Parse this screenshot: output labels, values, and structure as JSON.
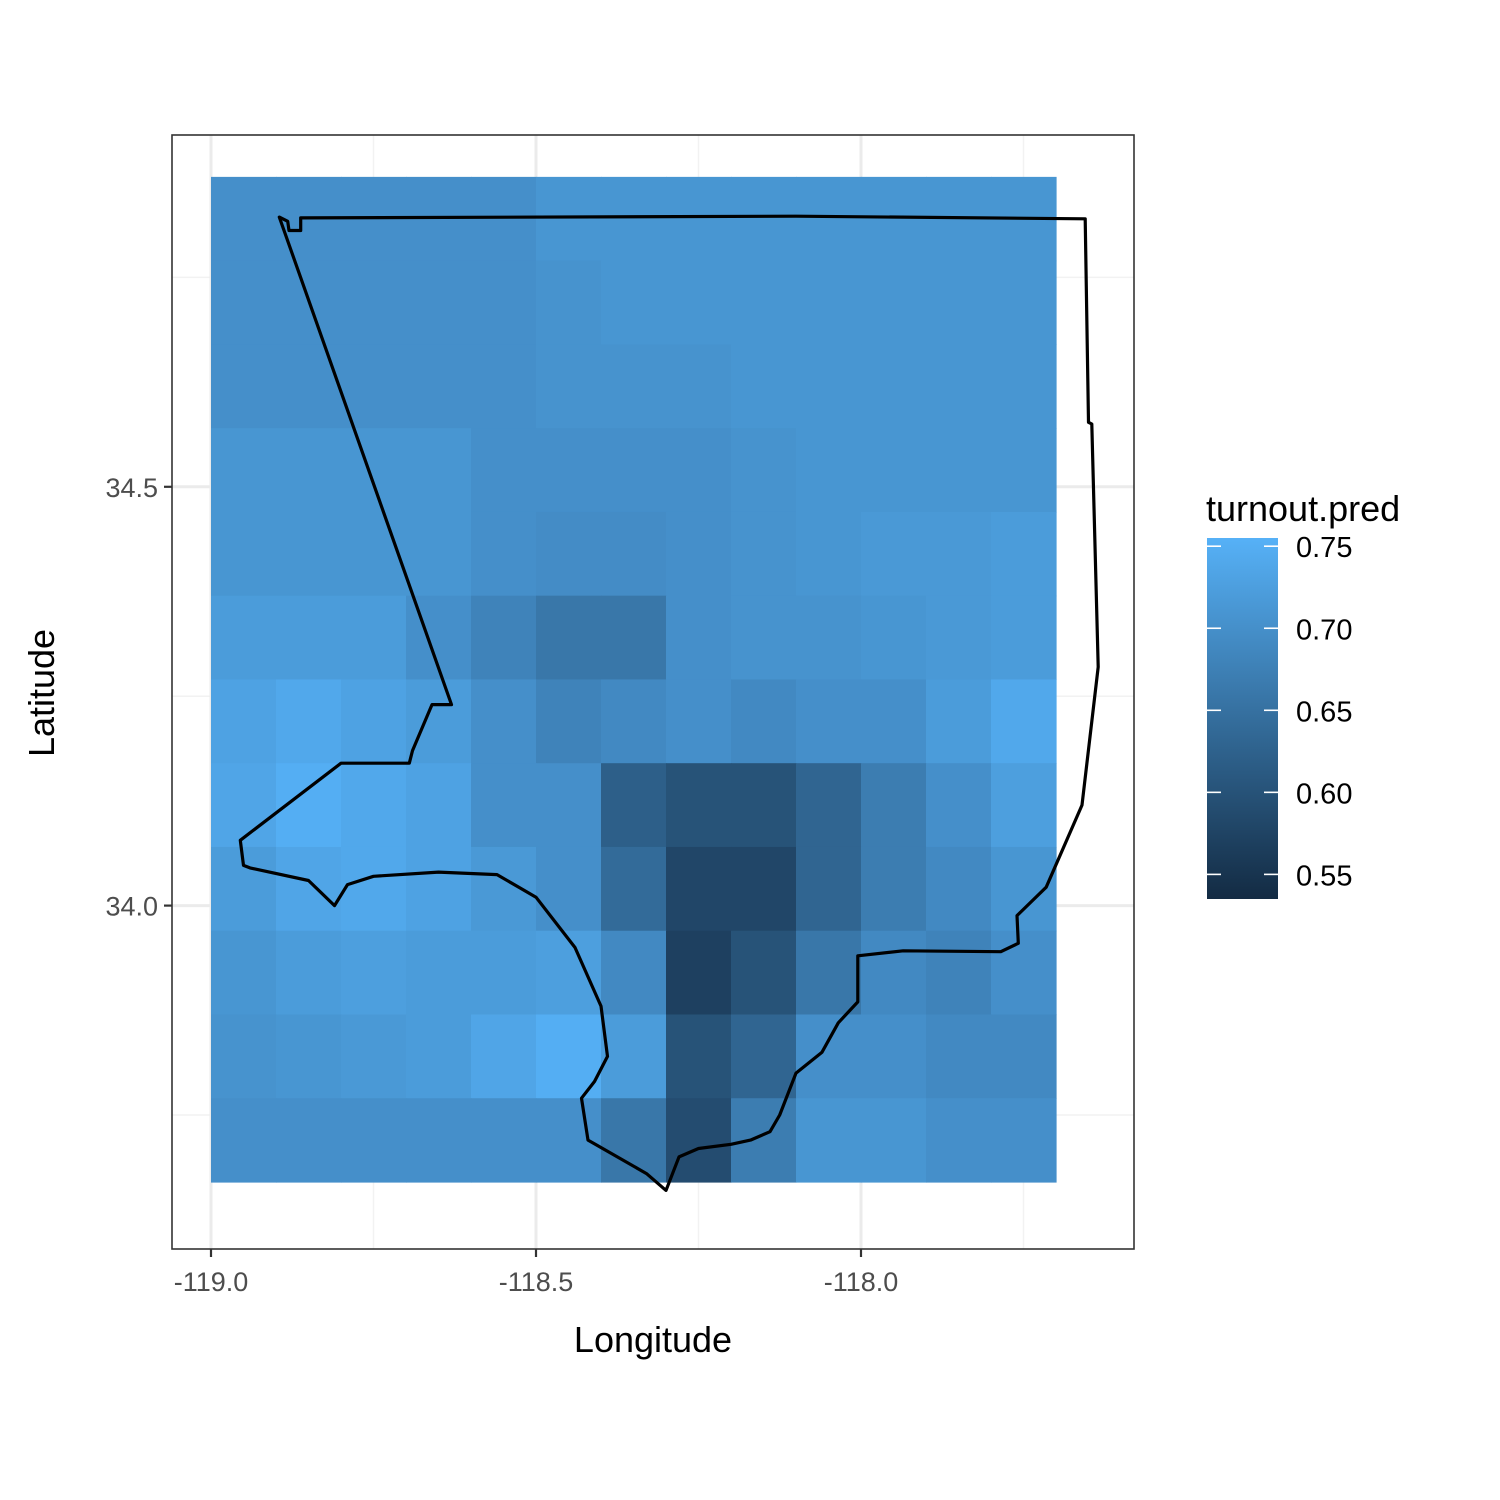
{
  "chart_data": {
    "type": "heatmap",
    "title": "",
    "xlabel": "Longitude",
    "ylabel": "Latitude",
    "xlim": [
      -119.06,
      -117.58
    ],
    "ylim": [
      33.59,
      34.92
    ],
    "grid": true,
    "theme": "bw",
    "x_ticks": [
      {
        "value": -119.0,
        "label": "-119.0"
      },
      {
        "value": -118.5,
        "label": "-118.5"
      },
      {
        "value": -118.0,
        "label": "-118.0"
      }
    ],
    "y_ticks": [
      {
        "value": 34.5,
        "label": "34.5"
      },
      {
        "value": 34.0,
        "label": "34.0"
      }
    ],
    "x_minor_grid": [
      -118.75,
      -118.25,
      -117.75
    ],
    "y_minor_grid": [
      34.75,
      34.25,
      33.75
    ],
    "tile_grid": {
      "x_start": -119.0,
      "x_step": 0.1,
      "n_cols": 13,
      "y_top": 34.87,
      "y_step": 0.1,
      "n_rows": 12,
      "note_rows_top_to_bottom": true
    },
    "z_values": [
      [
        0.7,
        0.7,
        0.7,
        0.7,
        0.7,
        0.71,
        0.71,
        0.71,
        0.71,
        0.71,
        0.71,
        0.71,
        0.71
      ],
      [
        0.7,
        0.7,
        0.7,
        0.7,
        0.7,
        0.705,
        0.71,
        0.71,
        0.71,
        0.71,
        0.71,
        0.71,
        0.71
      ],
      [
        0.7,
        0.7,
        0.7,
        0.7,
        0.7,
        0.705,
        0.705,
        0.705,
        0.71,
        0.71,
        0.71,
        0.71,
        0.71
      ],
      [
        0.71,
        0.71,
        0.71,
        0.71,
        0.7,
        0.7,
        0.7,
        0.7,
        0.705,
        0.71,
        0.71,
        0.71,
        0.71
      ],
      [
        0.71,
        0.71,
        0.71,
        0.71,
        0.7,
        0.695,
        0.695,
        0.7,
        0.705,
        0.71,
        0.715,
        0.715,
        0.72
      ],
      [
        0.72,
        0.72,
        0.72,
        0.7,
        0.68,
        0.66,
        0.66,
        0.7,
        0.705,
        0.705,
        0.71,
        0.715,
        0.72
      ],
      [
        0.73,
        0.74,
        0.73,
        0.72,
        0.7,
        0.68,
        0.69,
        0.7,
        0.69,
        0.7,
        0.7,
        0.72,
        0.74
      ],
      [
        0.735,
        0.75,
        0.74,
        0.73,
        0.7,
        0.7,
        0.62,
        0.6,
        0.6,
        0.63,
        0.67,
        0.7,
        0.725
      ],
      [
        0.72,
        0.735,
        0.74,
        0.73,
        0.715,
        0.7,
        0.64,
        0.58,
        0.58,
        0.63,
        0.67,
        0.69,
        0.71
      ],
      [
        0.71,
        0.72,
        0.725,
        0.72,
        0.72,
        0.725,
        0.69,
        0.57,
        0.6,
        0.66,
        0.69,
        0.68,
        0.7
      ],
      [
        0.705,
        0.71,
        0.715,
        0.72,
        0.735,
        0.75,
        0.72,
        0.6,
        0.63,
        0.7,
        0.7,
        0.69,
        0.69
      ],
      [
        0.7,
        0.7,
        0.7,
        0.7,
        0.7,
        0.7,
        0.66,
        0.59,
        0.67,
        0.71,
        0.71,
        0.7,
        0.7
      ]
    ],
    "legend": {
      "title": "turnout.pred",
      "position": "right",
      "range": [
        0.535,
        0.755
      ],
      "low_color": "#132B43",
      "high_color": "#56B1F7",
      "breaks": [
        {
          "value": 0.75,
          "label": "0.75"
        },
        {
          "value": 0.7,
          "label": "0.70"
        },
        {
          "value": 0.65,
          "label": "0.65"
        },
        {
          "value": 0.6,
          "label": "0.60"
        },
        {
          "value": 0.55,
          "label": "0.55"
        }
      ]
    },
    "county_outline": [
      [
        -118.895,
        34.822
      ],
      [
        -118.882,
        34.817
      ],
      [
        -118.88,
        34.806
      ],
      [
        -118.862,
        34.806
      ],
      [
        -118.862,
        34.821
      ],
      [
        -118.1,
        34.823
      ],
      [
        -117.655,
        34.82
      ],
      [
        -117.65,
        34.577
      ],
      [
        -117.645,
        34.575
      ],
      [
        -117.635,
        34.285
      ],
      [
        -117.66,
        34.12
      ],
      [
        -117.715,
        34.022
      ],
      [
        -117.76,
        33.988
      ],
      [
        -117.758,
        33.955
      ],
      [
        -117.785,
        33.945
      ],
      [
        -117.935,
        33.946
      ],
      [
        -118.005,
        33.94
      ],
      [
        -118.005,
        33.885
      ],
      [
        -118.035,
        33.86
      ],
      [
        -118.06,
        33.825
      ],
      [
        -118.1,
        33.8
      ],
      [
        -118.125,
        33.75
      ],
      [
        -118.14,
        33.73
      ],
      [
        -118.17,
        33.72
      ],
      [
        -118.2,
        33.715
      ],
      [
        -118.25,
        33.71
      ],
      [
        -118.28,
        33.7
      ],
      [
        -118.3,
        33.66
      ],
      [
        -118.33,
        33.68
      ],
      [
        -118.42,
        33.72
      ],
      [
        -118.43,
        33.77
      ],
      [
        -118.41,
        33.79
      ],
      [
        -118.39,
        33.82
      ],
      [
        -118.4,
        33.88
      ],
      [
        -118.44,
        33.95
      ],
      [
        -118.5,
        34.01
      ],
      [
        -118.56,
        34.037
      ],
      [
        -118.65,
        34.04
      ],
      [
        -118.75,
        34.035
      ],
      [
        -118.79,
        34.025
      ],
      [
        -118.81,
        34.0
      ],
      [
        -118.85,
        34.03
      ],
      [
        -118.94,
        34.045
      ],
      [
        -118.95,
        34.048
      ],
      [
        -118.955,
        34.078
      ],
      [
        -118.8,
        34.17
      ],
      [
        -118.695,
        34.17
      ],
      [
        -118.69,
        34.185
      ],
      [
        -118.66,
        34.24
      ],
      [
        -118.63,
        34.24
      ],
      [
        -118.895,
        34.822
      ]
    ],
    "annotations": []
  }
}
